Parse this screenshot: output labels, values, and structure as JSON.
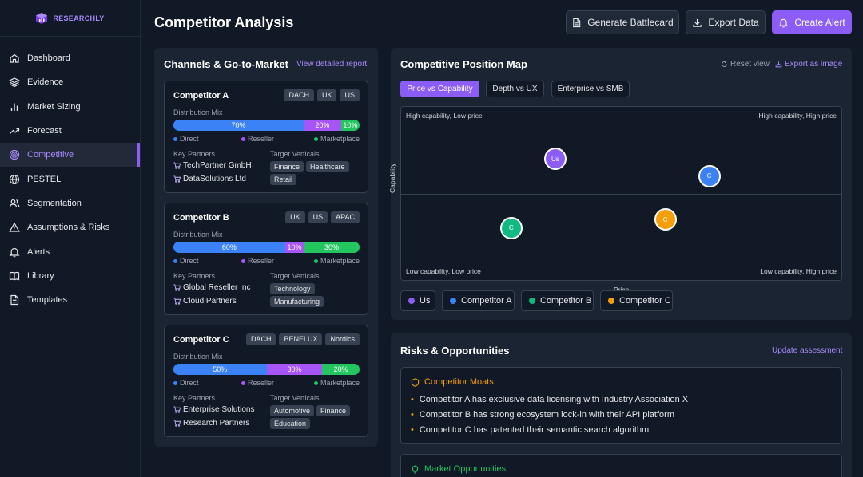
{
  "brand": {
    "name": "RESEARCHLY"
  },
  "sidebar": {
    "items": [
      {
        "label": "Dashboard",
        "icon": "home-icon"
      },
      {
        "label": "Evidence",
        "icon": "layers-icon"
      },
      {
        "label": "Market Sizing",
        "icon": "bar-chart-icon"
      },
      {
        "label": "Forecast",
        "icon": "trend-up-icon"
      },
      {
        "label": "Competitive",
        "icon": "target-icon",
        "active": true
      },
      {
        "label": "PESTEL",
        "icon": "globe-icon"
      },
      {
        "label": "Segmentation",
        "icon": "users-icon"
      },
      {
        "label": "Assumptions & Risks",
        "icon": "warning-icon"
      },
      {
        "label": "Alerts",
        "icon": "bell-icon"
      },
      {
        "label": "Library",
        "icon": "book-icon"
      },
      {
        "label": "Templates",
        "icon": "document-icon"
      }
    ]
  },
  "header": {
    "title": "Competitor Analysis",
    "battlecard_label": "Generate Battlecard",
    "export_label": "Export Data",
    "alert_label": "Create Alert"
  },
  "channels": {
    "title": "Channels & Go-to-Market",
    "link": "View detailed report",
    "distribution_label": "Distribution Mix",
    "partners_label": "Key Partners",
    "verticals_label": "Target Verticals",
    "legend": {
      "direct": "Direct",
      "reseller": "Reseller",
      "marketplace": "Marketplace"
    },
    "competitors": [
      {
        "name": "Competitor A",
        "regions": [
          "DACH",
          "UK",
          "US"
        ],
        "mix": {
          "direct": 70,
          "reseller": 20,
          "marketplace": 10
        },
        "mix_labels": {
          "direct": "70%",
          "reseller": "20%",
          "marketplace": "10%"
        },
        "partners": [
          "TechPartner GmbH",
          "DataSolutions Ltd"
        ],
        "verticals": [
          "Finance",
          "Healthcare",
          "Retail"
        ]
      },
      {
        "name": "Competitor B",
        "regions": [
          "UK",
          "US",
          "APAC"
        ],
        "mix": {
          "direct": 60,
          "reseller": 10,
          "marketplace": 30
        },
        "mix_labels": {
          "direct": "60%",
          "reseller": "10%",
          "marketplace": "30%"
        },
        "partners": [
          "Global Reseller Inc",
          "Cloud Partners"
        ],
        "verticals": [
          "Technology",
          "Manufacturing"
        ]
      },
      {
        "name": "Competitor C",
        "regions": [
          "DACH",
          "BENELUX",
          "Nordics"
        ],
        "mix": {
          "direct": 50,
          "reseller": 30,
          "marketplace": 20
        },
        "mix_labels": {
          "direct": "50%",
          "reseller": "30%",
          "marketplace": "20%"
        },
        "partners": [
          "Enterprise Solutions",
          "Research Partners"
        ],
        "verticals": [
          "Automotive",
          "Finance",
          "Education"
        ]
      }
    ]
  },
  "position_map": {
    "title": "Competitive Position Map",
    "reset_label": "Reset view",
    "export_label": "Export as image",
    "tabs": [
      "Price vs Capability",
      "Depth vs UX",
      "Enterprise vs SMB"
    ],
    "active_tab": 0,
    "quadrants": {
      "top_left": "High capability, Low price",
      "top_right": "High capability, High price",
      "bottom_left": "Low capability, Low price",
      "bottom_right": "Low capability, High price"
    },
    "x_axis": "Price",
    "y_axis": "Capability",
    "points": [
      {
        "label": "Us",
        "series": "Us",
        "price": 0.35,
        "capability": 0.7,
        "color": "#8b5cf6"
      },
      {
        "label": "C",
        "series": "Competitor A",
        "price": 0.7,
        "capability": 0.6,
        "color": "#3b82f6"
      },
      {
        "label": "C",
        "series": "Competitor B",
        "price": 0.25,
        "capability": 0.3,
        "color": "#10b981"
      },
      {
        "label": "C",
        "series": "Competitor C",
        "price": 0.6,
        "capability": 0.35,
        "color": "#f59e0b"
      }
    ],
    "legend": [
      {
        "label": "Us",
        "color": "#8b5cf6"
      },
      {
        "label": "Competitor A",
        "color": "#3b82f6"
      },
      {
        "label": "Competitor B",
        "color": "#10b981"
      },
      {
        "label": "Competitor C",
        "color": "#f59e0b"
      }
    ]
  },
  "risks": {
    "title": "Risks & Opportunities",
    "link": "Update assessment",
    "moats_title": "Competitor Moats",
    "moats": [
      "Competitor A has exclusive data licensing with Industry Association X",
      "Competitor B has strong ecosystem lock-in with their API platform",
      "Competitor C has patented their semantic search algorithm"
    ],
    "opportunities_title": "Market Opportunities"
  },
  "colors": {
    "accent": "#8b5cf6",
    "direct": "#3b82f6",
    "reseller": "#a855f7",
    "marketplace": "#22c55e",
    "warning": "#f59e0b",
    "success": "#22c55e"
  }
}
